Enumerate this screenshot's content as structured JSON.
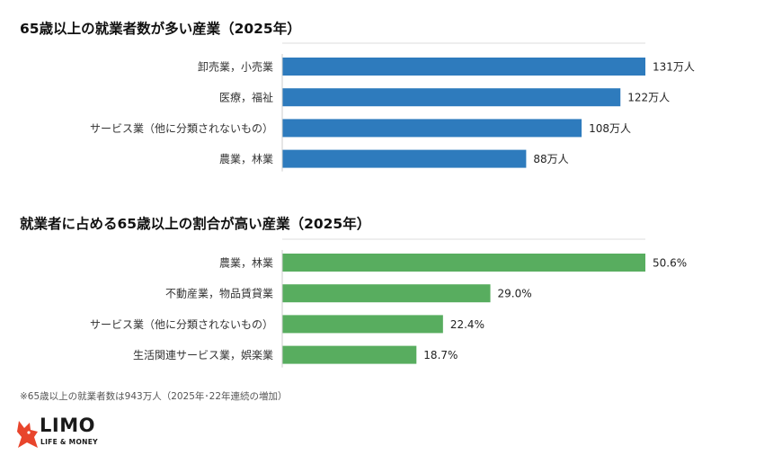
{
  "chart_data": [
    {
      "type": "bar",
      "orientation": "horizontal",
      "title": "65歳以上の就業者数が多い産業（2025年）",
      "categories": [
        "卸売業，小売業",
        "医療，福祉",
        "サービス業（他に分類されないもの）",
        "農業，林業"
      ],
      "values": [
        131,
        122,
        108,
        88
      ],
      "value_labels": [
        "131万人",
        "122万人",
        "108万人",
        "88万人"
      ],
      "xlim": [
        0,
        131
      ],
      "grid": false,
      "color": "#2e7bbd"
    },
    {
      "type": "bar",
      "orientation": "horizontal",
      "title": "就業者に占める65歳以上の割合が高い産業（2025年）",
      "categories": [
        "農業，林業",
        "不動産業，物品賃貸業",
        "サービス業（他に分類されないもの）",
        "生活関連サービス業，娯楽業"
      ],
      "values": [
        50.6,
        29.0,
        22.4,
        18.7
      ],
      "value_labels": [
        "50.6%",
        "29.0%",
        "22.4%",
        "18.7%"
      ],
      "xlim": [
        0,
        50.6
      ],
      "grid": false,
      "color": "#58ad5f"
    }
  ],
  "footnote": "※65歳以上の就業者数は943万人（2025年･22年連続の増加）",
  "logo": {
    "name": "LIMO",
    "tagline": "LIFE & MONEY",
    "icon": "fox-icon",
    "color": "#e8452c"
  }
}
